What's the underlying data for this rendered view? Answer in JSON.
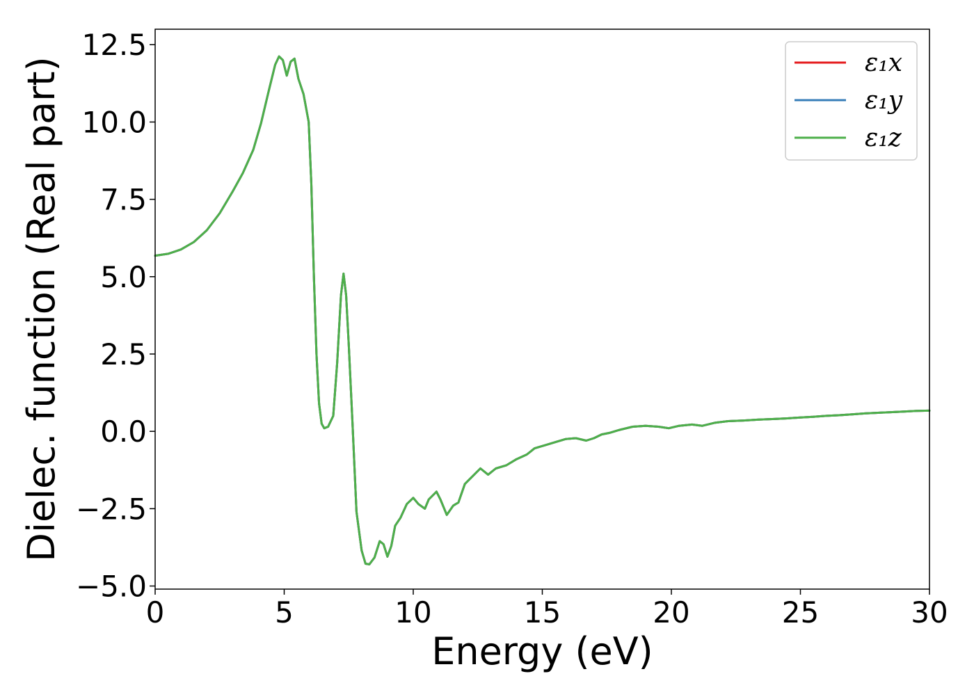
{
  "chart_data": {
    "type": "line",
    "title": "",
    "xlabel": "Energy (eV)",
    "ylabel": "Dielec. function (Real part)",
    "xlim": [
      0,
      30
    ],
    "ylim": [
      -5.1,
      13.0
    ],
    "x_ticks": [
      0,
      5,
      10,
      15,
      20,
      25,
      30
    ],
    "x_tick_labels": [
      "0",
      "5",
      "10",
      "15",
      "20",
      "25",
      "30"
    ],
    "y_ticks": [
      -5.0,
      -2.5,
      0.0,
      2.5,
      5.0,
      7.5,
      10.0,
      12.5
    ],
    "y_tick_labels": [
      "−5.0",
      "−2.5",
      "0.0",
      "2.5",
      "5.0",
      "7.5",
      "10.0",
      "12.5"
    ],
    "grid": false,
    "legend": {
      "position": "top-right"
    },
    "x": [
      0,
      0.5,
      1,
      1.5,
      2,
      2.5,
      3,
      3.4,
      3.8,
      4.1,
      4.4,
      4.65,
      4.8,
      4.95,
      5.1,
      5.25,
      5.4,
      5.55,
      5.75,
      5.95,
      6.05,
      6.15,
      6.25,
      6.35,
      6.45,
      6.55,
      6.7,
      6.9,
      7.05,
      7.2,
      7.3,
      7.4,
      7.5,
      7.65,
      7.8,
      8.0,
      8.15,
      8.3,
      8.5,
      8.7,
      8.85,
      9.0,
      9.15,
      9.3,
      9.5,
      9.75,
      10.0,
      10.2,
      10.45,
      10.6,
      10.9,
      11.05,
      11.3,
      11.55,
      11.75,
      12.0,
      12.3,
      12.6,
      12.9,
      13.2,
      13.6,
      14.0,
      14.4,
      14.7,
      15.1,
      15.5,
      15.9,
      16.3,
      16.7,
      17.0,
      17.3,
      17.6,
      18.0,
      18.5,
      19.0,
      19.5,
      19.9,
      20.3,
      20.8,
      21.2,
      21.7,
      22.2,
      22.8,
      23.4,
      24.0,
      24.5,
      25.0,
      25.5,
      26.0,
      26.5,
      27.0,
      27.5,
      28.0,
      28.5,
      29.0,
      29.5,
      30.0
    ],
    "series": [
      {
        "name": "ε₁x",
        "color": "#e41a1c",
        "values": [
          5.68,
          5.74,
          5.88,
          6.12,
          6.5,
          7.05,
          7.75,
          8.35,
          9.1,
          9.95,
          11.0,
          11.85,
          12.12,
          12.0,
          11.5,
          11.95,
          12.05,
          11.4,
          10.9,
          10.0,
          8.0,
          5.0,
          2.5,
          0.9,
          0.25,
          0.1,
          0.15,
          0.5,
          2.2,
          4.4,
          5.1,
          4.4,
          2.8,
          0.2,
          -2.6,
          -3.85,
          -4.28,
          -4.3,
          -4.08,
          -3.55,
          -3.65,
          -4.05,
          -3.7,
          -3.05,
          -2.8,
          -2.35,
          -2.15,
          -2.35,
          -2.5,
          -2.2,
          -1.95,
          -2.2,
          -2.7,
          -2.4,
          -2.3,
          -1.7,
          -1.45,
          -1.2,
          -1.4,
          -1.2,
          -1.1,
          -0.9,
          -0.75,
          -0.55,
          -0.45,
          -0.35,
          -0.25,
          -0.22,
          -0.3,
          -0.22,
          -0.1,
          -0.05,
          0.05,
          0.15,
          0.18,
          0.15,
          0.1,
          0.18,
          0.22,
          0.18,
          0.28,
          0.33,
          0.35,
          0.38,
          0.4,
          0.42,
          0.45,
          0.47,
          0.5,
          0.52,
          0.55,
          0.58,
          0.6,
          0.62,
          0.64,
          0.66,
          0.67
        ]
      },
      {
        "name": "ε₁y",
        "color": "#377eb8",
        "values": [
          5.68,
          5.74,
          5.88,
          6.12,
          6.5,
          7.05,
          7.75,
          8.35,
          9.1,
          9.95,
          11.0,
          11.85,
          12.12,
          12.0,
          11.5,
          11.95,
          12.05,
          11.4,
          10.9,
          10.0,
          8.0,
          5.0,
          2.5,
          0.9,
          0.25,
          0.1,
          0.15,
          0.5,
          2.2,
          4.4,
          5.1,
          4.4,
          2.8,
          0.2,
          -2.6,
          -3.85,
          -4.28,
          -4.3,
          -4.08,
          -3.55,
          -3.65,
          -4.05,
          -3.7,
          -3.05,
          -2.8,
          -2.35,
          -2.15,
          -2.35,
          -2.5,
          -2.2,
          -1.95,
          -2.2,
          -2.7,
          -2.4,
          -2.3,
          -1.7,
          -1.45,
          -1.2,
          -1.4,
          -1.2,
          -1.1,
          -0.9,
          -0.75,
          -0.55,
          -0.45,
          -0.35,
          -0.25,
          -0.22,
          -0.3,
          -0.22,
          -0.1,
          -0.05,
          0.05,
          0.15,
          0.18,
          0.15,
          0.1,
          0.18,
          0.22,
          0.18,
          0.28,
          0.33,
          0.35,
          0.38,
          0.4,
          0.42,
          0.45,
          0.47,
          0.5,
          0.52,
          0.55,
          0.58,
          0.6,
          0.62,
          0.64,
          0.66,
          0.67
        ]
      },
      {
        "name": "ε₁z",
        "color": "#4daf4a",
        "values": [
          5.68,
          5.74,
          5.88,
          6.12,
          6.5,
          7.05,
          7.75,
          8.35,
          9.1,
          9.95,
          11.0,
          11.85,
          12.12,
          12.0,
          11.5,
          11.95,
          12.05,
          11.4,
          10.9,
          10.0,
          8.0,
          5.0,
          2.5,
          0.9,
          0.25,
          0.1,
          0.15,
          0.5,
          2.2,
          4.4,
          5.1,
          4.4,
          2.8,
          0.2,
          -2.6,
          -3.85,
          -4.28,
          -4.3,
          -4.08,
          -3.55,
          -3.65,
          -4.05,
          -3.7,
          -3.05,
          -2.8,
          -2.35,
          -2.15,
          -2.35,
          -2.5,
          -2.2,
          -1.95,
          -2.2,
          -2.7,
          -2.4,
          -2.3,
          -1.7,
          -1.45,
          -1.2,
          -1.4,
          -1.2,
          -1.1,
          -0.9,
          -0.75,
          -0.55,
          -0.45,
          -0.35,
          -0.25,
          -0.22,
          -0.3,
          -0.22,
          -0.1,
          -0.05,
          0.05,
          0.15,
          0.18,
          0.15,
          0.1,
          0.18,
          0.22,
          0.18,
          0.28,
          0.33,
          0.35,
          0.38,
          0.4,
          0.42,
          0.45,
          0.47,
          0.5,
          0.52,
          0.55,
          0.58,
          0.6,
          0.62,
          0.64,
          0.66,
          0.67
        ]
      }
    ]
  }
}
